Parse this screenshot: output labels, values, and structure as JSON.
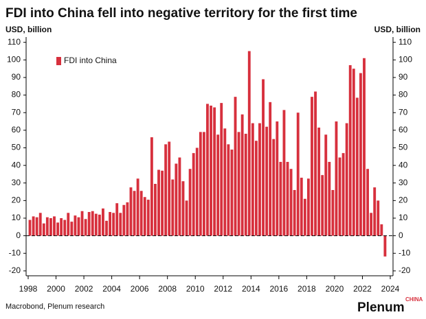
{
  "chart_data": {
    "type": "bar",
    "title": "FDI into China fell into negative territory for the first time",
    "y_label": "USD, billion",
    "source": "Macrobond, Plenum research",
    "logo": "Plenum",
    "logo_sub": "CHINA",
    "series": [
      {
        "name": "FDI into China",
        "color": "#d7303d",
        "x": [
          1998,
          1998.25,
          1998.5,
          1998.75,
          1999,
          1999.25,
          1999.5,
          1999.75,
          2000,
          2000.25,
          2000.5,
          2000.75,
          2001,
          2001.25,
          2001.5,
          2001.75,
          2002,
          2002.25,
          2002.5,
          2002.75,
          2003,
          2003.25,
          2003.5,
          2003.75,
          2004,
          2004.25,
          2004.5,
          2004.75,
          2005,
          2005.25,
          2005.5,
          2005.75,
          2006,
          2006.25,
          2006.5,
          2006.75,
          2007,
          2007.25,
          2007.5,
          2007.75,
          2008,
          2008.25,
          2008.5,
          2008.75,
          2009,
          2009.25,
          2009.5,
          2009.75,
          2010,
          2010.25,
          2010.5,
          2010.75,
          2011,
          2011.25,
          2011.5,
          2011.75,
          2012,
          2012.25,
          2012.5,
          2012.75,
          2013,
          2013.25,
          2013.5,
          2013.75,
          2014,
          2014.25,
          2014.5,
          2014.75,
          2015,
          2015.25,
          2015.5,
          2015.75,
          2016,
          2016.25,
          2016.5,
          2016.75,
          2017,
          2017.25,
          2017.5,
          2017.75,
          2018,
          2018.25,
          2018.5,
          2018.75,
          2019,
          2019.25,
          2019.5,
          2019.75,
          2020,
          2020.25,
          2020.5,
          2020.75,
          2021,
          2021.25,
          2021.5,
          2021.75,
          2022,
          2022.25,
          2022.5,
          2022.75,
          2023,
          2023.25,
          2023.5
        ],
        "values": [
          9,
          11,
          10.5,
          13,
          7,
          10.5,
          10,
          11,
          7.5,
          10,
          9,
          13,
          8,
          11.5,
          10.5,
          14,
          9.5,
          13.5,
          14,
          12.5,
          12,
          15.5,
          8.5,
          13.5,
          13,
          18.5,
          13,
          17.5,
          19,
          27.5,
          25.5,
          32.5,
          25.5,
          22,
          20.5,
          56,
          29.5,
          37.5,
          37,
          52,
          53.5,
          32,
          41,
          44.5,
          31,
          20,
          38,
          47,
          50,
          59,
          59,
          75,
          74,
          73,
          57.5,
          75.5,
          61,
          52,
          49,
          79,
          59,
          69,
          58,
          105,
          64,
          54,
          64,
          89,
          62,
          76,
          55,
          65,
          42,
          71.5,
          42,
          38,
          26,
          70,
          33,
          21,
          32.5,
          79,
          82,
          61.5,
          34.5,
          57.5,
          42,
          26,
          65,
          44.5,
          47,
          64,
          97,
          95,
          78.5,
          92.5,
          101,
          38,
          13,
          27.5,
          20,
          6.5,
          -11.8
        ]
      }
    ],
    "xlim": [
      1998,
      2024
    ],
    "xticks": [
      1998,
      2000,
      2002,
      2004,
      2006,
      2008,
      2010,
      2012,
      2014,
      2016,
      2018,
      2020,
      2022,
      2024
    ],
    "ylim": [
      -22,
      113
    ],
    "yticks": [
      -20,
      -10,
      0,
      10,
      20,
      30,
      40,
      50,
      60,
      70,
      80,
      90,
      100,
      110
    ],
    "legend": "top-left"
  }
}
